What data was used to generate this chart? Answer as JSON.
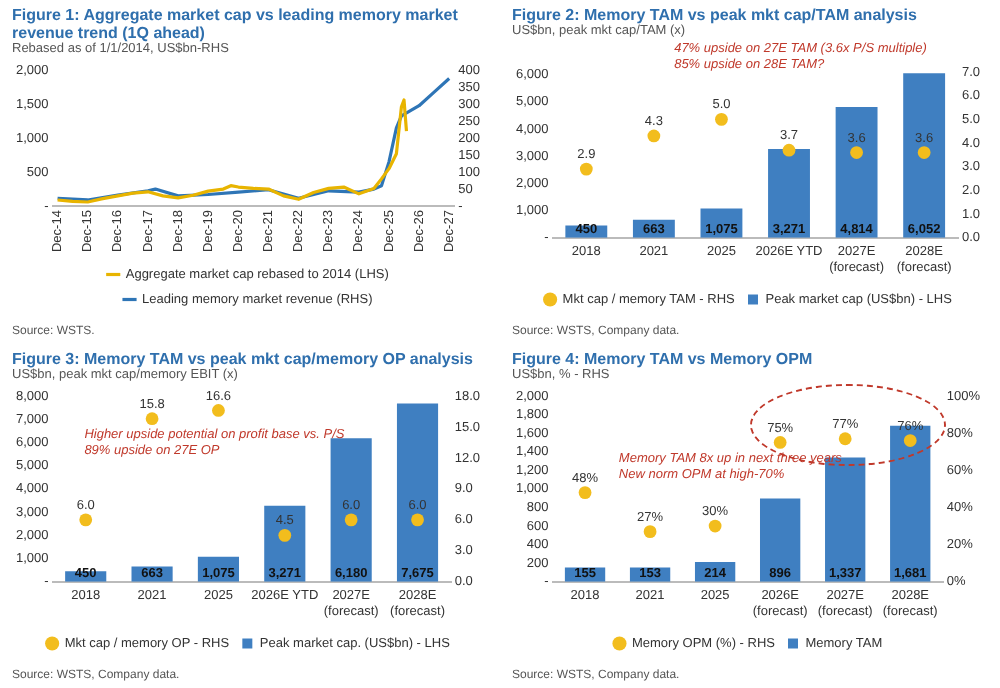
{
  "chart_data": [
    {
      "type": "line",
      "title": "Figure 1: Aggregate market cap vs leading memory market revenue trend (1Q ahead)",
      "subtitle": "Rebased as of 1/1/2014, US$bn-RHS",
      "xlim": [
        "2014-10",
        "2028-02"
      ],
      "xticks": [
        {
          "value": "2014-12",
          "label": "Dec-14"
        },
        {
          "value": "2015-12",
          "label": "Dec-15"
        },
        {
          "value": "2016-12",
          "label": "Dec-16"
        },
        {
          "value": "2017-12",
          "label": "Dec-17"
        },
        {
          "value": "2018-12",
          "label": "Dec-18"
        },
        {
          "value": "2019-12",
          "label": "Dec-19"
        },
        {
          "value": "2020-12",
          "label": "Dec-20"
        },
        {
          "value": "2021-12",
          "label": "Dec-21"
        },
        {
          "value": "2022-12",
          "label": "Dec-22"
        },
        {
          "value": "2023-12",
          "label": "Dec-23"
        },
        {
          "value": "2024-12",
          "label": "Dec-24"
        },
        {
          "value": "2025-12",
          "label": "Dec-25"
        },
        {
          "value": "2026-12",
          "label": "Dec-26"
        },
        {
          "value": "2027-12",
          "label": "Dec-27"
        }
      ],
      "ylim": [
        0,
        2000
      ],
      "yticks": [
        {
          "value": 0,
          "label": "-"
        },
        {
          "value": 500,
          "label": "500"
        },
        {
          "value": 1000,
          "label": "1,000"
        },
        {
          "value": 1500,
          "label": "1,500"
        },
        {
          "value": 2000,
          "label": "2,000"
        }
      ],
      "y2lim": [
        0,
        400
      ],
      "y2ticks": [
        {
          "value": 0,
          "label": "-"
        },
        50,
        100,
        150,
        200,
        250,
        300,
        350,
        400
      ],
      "legend": "bottom",
      "annotations": [
        "Source: WSTS."
      ],
      "series": [
        {
          "name": "Aggregate market cap rebased to 2014 (LHS)",
          "color": "#e8b400",
          "x": [
            "2014-12",
            "2015-06",
            "2015-12",
            "2016-06",
            "2016-12",
            "2017-06",
            "2017-12",
            "2018-06",
            "2018-12",
            "2019-06",
            "2019-12",
            "2020-06",
            "2020-09",
            "2020-12",
            "2021-06",
            "2021-12",
            "2022-06",
            "2022-12",
            "2023-06",
            "2023-12",
            "2024-06",
            "2024-12",
            "2025-06",
            "2025-09",
            "2025-12",
            "2026-03",
            "2026-05",
            "2026-06",
            "2026-07"
          ],
          "values": [
            90,
            70,
            60,
            110,
            150,
            190,
            210,
            150,
            120,
            160,
            220,
            250,
            300,
            280,
            260,
            250,
            150,
            100,
            200,
            260,
            280,
            180,
            260,
            400,
            550,
            770,
            1460,
            1560,
            1100
          ]
        },
        {
          "name": "Leading memory market revenue (RHS)",
          "color": "#2e75b6",
          "axis": "y2",
          "x": [
            "2014-12",
            "2015-12",
            "2016-12",
            "2017-12",
            "2018-03",
            "2018-12",
            "2019-12",
            "2020-12",
            "2021-12",
            "2022-12",
            "2023-12",
            "2024-12",
            "2025-06",
            "2025-09",
            "2025-12",
            "2026-03",
            "2026-05",
            "2026-12",
            "2027-06",
            "2027-12"
          ],
          "values": [
            23,
            18,
            32,
            45,
            50,
            30,
            34,
            41,
            48,
            23,
            45,
            41,
            50,
            60,
            130,
            230,
            265,
            295,
            335,
            375
          ]
        }
      ]
    },
    {
      "type": "bar",
      "title": "Figure 2: Memory TAM vs peak mkt cap/TAM analysis",
      "subtitle": "US$bn, peak mkt cap/TAM (x)",
      "categories": [
        "2018",
        "2021",
        "2025",
        "2026E YTD",
        "2027E (forecast)",
        "2028E (forecast)"
      ],
      "ylim": [
        0,
        6100
      ],
      "yticks": [
        {
          "value": 0,
          "label": "-"
        },
        {
          "value": 1000,
          "label": "1,000"
        },
        {
          "value": 2000,
          "label": "2,000"
        },
        {
          "value": 3000,
          "label": "3,000"
        },
        {
          "value": 4000,
          "label": "4,000"
        },
        {
          "value": 5000,
          "label": "5,000"
        },
        {
          "value": 6000,
          "label": "6,000"
        }
      ],
      "y2lim": [
        0,
        7
      ],
      "y2ticks": [
        {
          "value": 0,
          "label": "0.0"
        },
        {
          "value": 1,
          "label": "1.0"
        },
        {
          "value": 2,
          "label": "2.0"
        },
        {
          "value": 3,
          "label": "3.0"
        },
        {
          "value": 4,
          "label": "4.0"
        },
        {
          "value": 5,
          "label": "5.0"
        },
        {
          "value": 6,
          "label": "6.0"
        },
        {
          "value": 7,
          "label": "7.0"
        }
      ],
      "legend": "bottom",
      "annotations": [
        "47% upside on 27E TAM (3.6x P/S multiple)",
        "85% upside on 28E TAM?",
        "Source: WSTS, Company data."
      ],
      "series": [
        {
          "name": "Peak market cap (US$bn) - LHS",
          "color": "#3f7fc1",
          "values": [
            450,
            663,
            1075,
            3271,
            4814,
            6052
          ],
          "value_labels": [
            "450",
            "663",
            "1,075",
            "3,271",
            "4,814",
            "6,052"
          ]
        },
        {
          "name": "Mkt cap / memory TAM - RHS",
          "type": "scatter",
          "axis": "y2",
          "marker": "circle",
          "color": "#f2bd1d",
          "values": [
            2.9,
            4.3,
            5.0,
            3.7,
            3.6,
            3.6
          ],
          "value_labels": [
            "2.9",
            "4.3",
            "5.0",
            "3.7",
            "3.6",
            "3.6"
          ]
        }
      ]
    },
    {
      "type": "bar",
      "title": "Figure 3: Memory TAM vs peak mkt cap/memory OP analysis",
      "subtitle": "US$bn, peak mkt cap/memory EBIT (x)",
      "categories": [
        "2018",
        "2021",
        "2025",
        "2026E YTD",
        "2027E (forecast)",
        "2028E (forecast)"
      ],
      "ylim": [
        0,
        8000
      ],
      "yticks": [
        {
          "value": 0,
          "label": "-"
        },
        {
          "value": 1000,
          "label": "1,000"
        },
        {
          "value": 2000,
          "label": "2,000"
        },
        {
          "value": 3000,
          "label": "3,000"
        },
        {
          "value": 4000,
          "label": "4,000"
        },
        {
          "value": 5000,
          "label": "5,000"
        },
        {
          "value": 6000,
          "label": "6,000"
        },
        {
          "value": 7000,
          "label": "7,000"
        },
        {
          "value": 8000,
          "label": "8,000"
        }
      ],
      "y2lim": [
        0,
        18
      ],
      "y2ticks": [
        {
          "value": 0,
          "label": "0.0"
        },
        {
          "value": 3,
          "label": "3.0"
        },
        {
          "value": 6,
          "label": "6.0"
        },
        {
          "value": 9,
          "label": "9.0"
        },
        {
          "value": 12,
          "label": "12.0"
        },
        {
          "value": 15,
          "label": "15.0"
        },
        {
          "value": 18,
          "label": "18.0"
        }
      ],
      "legend": "bottom",
      "annotations": [
        "Higher upside potential on profit base vs. P/S",
        "89% upside on 27E OP",
        "Source: WSTS, Company data."
      ],
      "series": [
        {
          "name": "Peak market cap. (US$bn) - LHS",
          "color": "#3f7fc1",
          "values": [
            450,
            663,
            1075,
            3271,
            6180,
            7675
          ],
          "value_labels": [
            "450",
            "663",
            "1,075",
            "3,271",
            "6,180",
            "7,675"
          ]
        },
        {
          "name": "Mkt cap / memory OP - RHS",
          "type": "scatter",
          "axis": "y2",
          "marker": "circle",
          "color": "#f2bd1d",
          "values": [
            6.0,
            15.8,
            16.6,
            4.5,
            6.0,
            6.0
          ],
          "value_labels": [
            "6.0",
            "15.8",
            "16.6",
            "4.5",
            "6.0",
            "6.0"
          ]
        }
      ]
    },
    {
      "type": "bar",
      "title": "Figure 4: Memory TAM vs Memory OPM",
      "subtitle": "US$bn, % - RHS",
      "categories": [
        "2018",
        "2021",
        "2025",
        "2026E (forecast)",
        "2027E (forecast)",
        "2028E (forecast)"
      ],
      "ylim": [
        0,
        2000
      ],
      "yticks": [
        {
          "value": 0,
          "label": "-"
        },
        200,
        400,
        600,
        800,
        {
          "value": 1000,
          "label": "1,000"
        },
        {
          "value": 1200,
          "label": "1,200"
        },
        {
          "value": 1400,
          "label": "1,400"
        },
        {
          "value": 1600,
          "label": "1,600"
        },
        {
          "value": 1800,
          "label": "1,800"
        },
        {
          "value": 2000,
          "label": "2,000"
        }
      ],
      "y2lim": [
        0,
        100
      ],
      "y2ticks": [
        {
          "value": 0,
          "label": "0%"
        },
        {
          "value": 20,
          "label": "20%"
        },
        {
          "value": 40,
          "label": "40%"
        },
        {
          "value": 60,
          "label": "60%"
        },
        {
          "value": 80,
          "label": "80%"
        },
        {
          "value": 100,
          "label": "100%"
        }
      ],
      "legend": "bottom",
      "annotations": [
        "Memory TAM 8x up in next three years",
        "New norm OPM at high-70%",
        "Source: WSTS, Company data."
      ],
      "series": [
        {
          "name": "Memory TAM",
          "color": "#3f7fc1",
          "values": [
            155,
            153,
            214,
            896,
            1337,
            1681
          ],
          "value_labels": [
            "155",
            "153",
            "214",
            "896",
            "1,337",
            "1,681"
          ]
        },
        {
          "name": "Memory OPM (%) - RHS",
          "type": "scatter",
          "axis": "y2",
          "marker": "circle",
          "color": "#f2bd1d",
          "values": [
            48,
            27,
            30,
            75,
            77,
            76
          ],
          "value_labels": [
            "48%",
            "27%",
            "30%",
            "75%",
            "77%",
            "76%"
          ]
        }
      ]
    }
  ]
}
